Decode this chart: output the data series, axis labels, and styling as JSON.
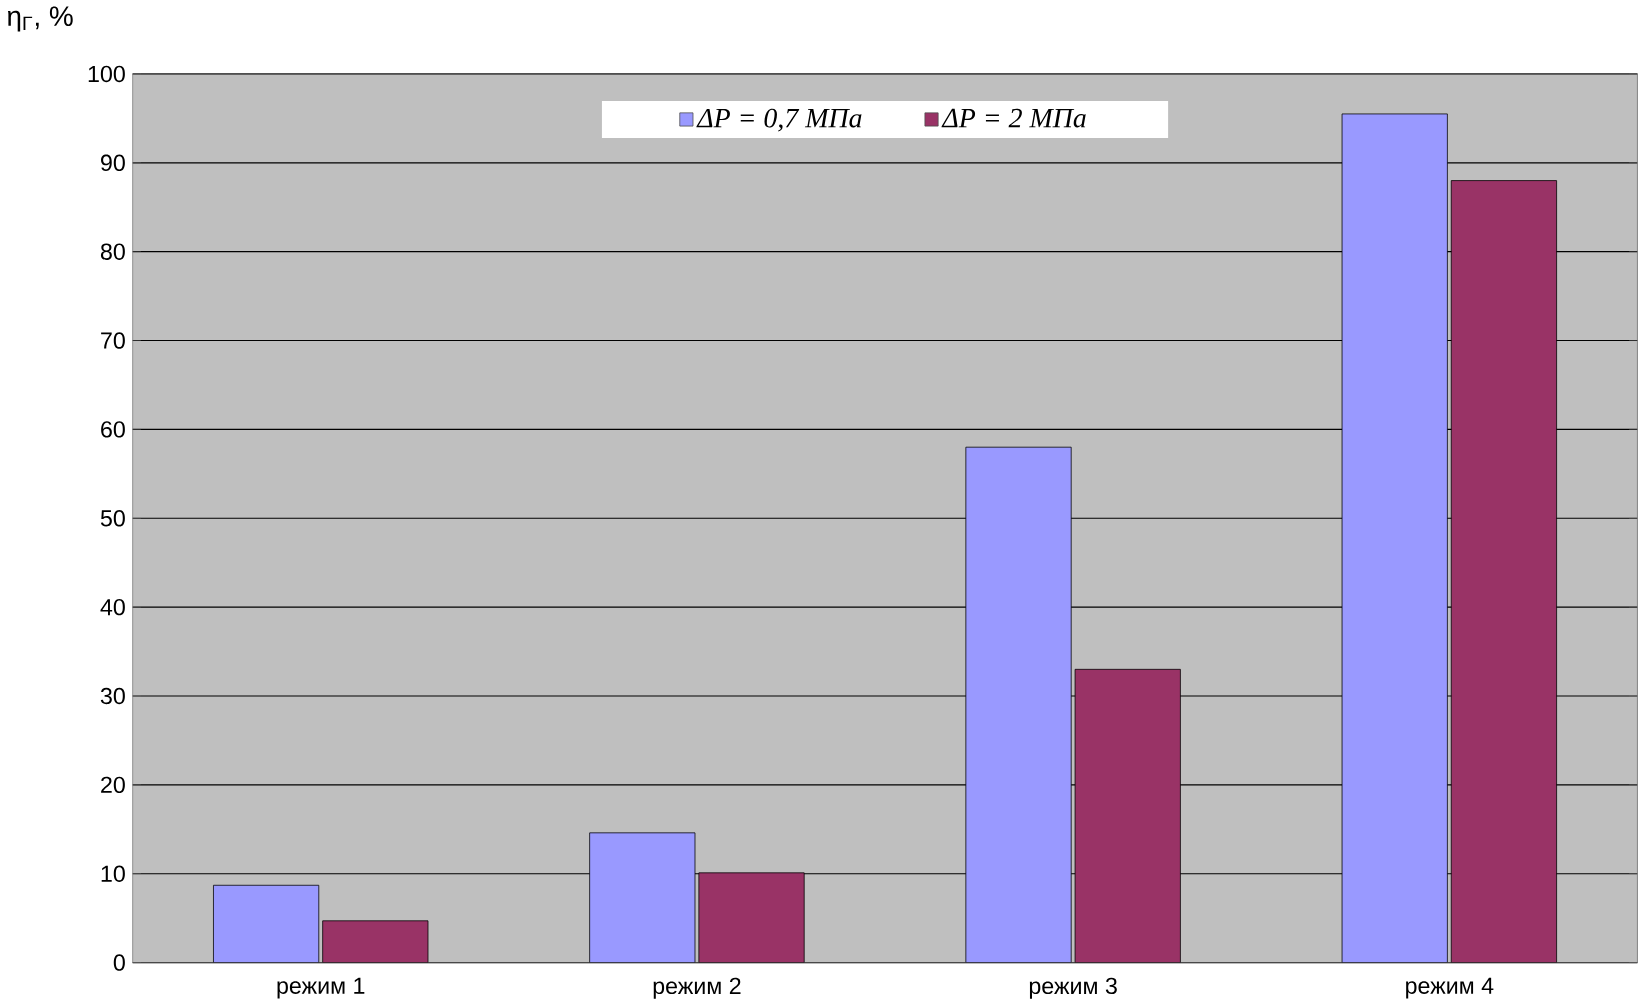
{
  "chart_data": {
    "type": "bar",
    "ylabel": "η$_{Г}$, %",
    "categories": [
      "режим 1",
      "режим 2",
      "режим 3",
      "режим 4"
    ],
    "series": [
      {
        "name": "ΔP = 0,7 МПа",
        "color": "#9999ff",
        "values": [
          8.7,
          14.6,
          58,
          95.5
        ]
      },
      {
        "name": "ΔP = 2 МПа",
        "color": "#993366",
        "values": [
          4.7,
          10.1,
          33,
          88
        ]
      }
    ],
    "ylim": [
      0,
      100
    ],
    "yticks": [
      0,
      10,
      20,
      30,
      40,
      50,
      60,
      70,
      80,
      90,
      100
    ],
    "grid": "y",
    "legend": "top"
  }
}
